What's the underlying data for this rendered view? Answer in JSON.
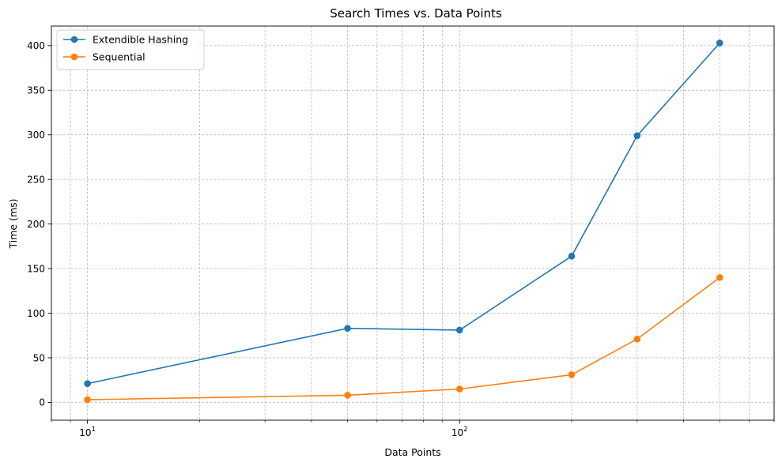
{
  "chart_data": {
    "type": "line",
    "title": "Search Times vs. Data Points",
    "xlabel": "Data Points",
    "ylabel": "Time (ms)",
    "xscale": "log",
    "xlim": [
      8.0,
      700
    ],
    "ylim": [
      -20,
      422
    ],
    "grid": true,
    "legend_position": "top-left",
    "x": [
      10,
      50,
      100,
      200,
      300,
      500
    ],
    "series": [
      {
        "name": "Extendible Hashing",
        "color": "#1f77b4",
        "values": [
          21,
          83,
          81,
          164,
          299,
          403
        ]
      },
      {
        "name": "Sequential",
        "color": "#ff7f0e",
        "values": [
          3,
          8,
          15,
          31,
          71,
          140
        ]
      }
    ],
    "x_ticks": [
      {
        "value": 10,
        "base": "10",
        "exp": "1"
      },
      {
        "value": 100,
        "base": "10",
        "exp": "2"
      }
    ],
    "y_ticks": [
      {
        "value": 0,
        "label": "0"
      },
      {
        "value": 50,
        "label": "50"
      },
      {
        "value": 100,
        "label": "100"
      },
      {
        "value": 150,
        "label": "150"
      },
      {
        "value": 200,
        "label": "200"
      },
      {
        "value": 250,
        "label": "250"
      },
      {
        "value": 300,
        "label": "300"
      },
      {
        "value": 350,
        "label": "350"
      },
      {
        "value": 400,
        "label": "400"
      }
    ]
  }
}
